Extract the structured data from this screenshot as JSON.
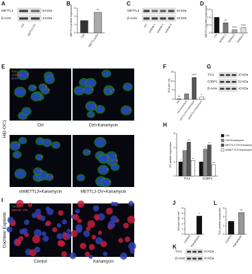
{
  "panel_a": {
    "letter": "A",
    "rows": [
      "METTL3",
      "β-Actin"
    ],
    "sizes": [
      "64 kDa",
      "43 kDa"
    ],
    "lanes": [
      "Ctrl",
      "METTL3 OV"
    ]
  },
  "panel_b": {
    "letter": "B",
    "ylabel": "METTL3 protein expression",
    "categories": [
      "Ctrl",
      "METTL3-OV"
    ],
    "values": [
      1.5,
      2.5
    ],
    "sig": [
      null,
      "**"
    ],
    "ylim": [
      0,
      3
    ],
    "yticks": [
      0,
      1,
      2,
      3
    ],
    "colors": [
      "#333333",
      "#aaaaaa"
    ]
  },
  "panel_c": {
    "letter": "C",
    "rows": [
      "METTL3",
      "β-Actin"
    ],
    "sizes": [
      "64 kDa",
      "43 kDa"
    ],
    "lanes": [
      "Ctrl",
      "ShRNA-1",
      "ShRNA-2",
      "ShRNA-3"
    ]
  },
  "panel_d": {
    "letter": "D",
    "ylabel": "METTL3 protein expression",
    "categories": [
      "Ctrl",
      "ShRNA-1",
      "ShRNA-2",
      "ShRNA-3"
    ],
    "values": [
      1.0,
      0.65,
      0.2,
      0.35
    ],
    "sig": [
      null,
      "**",
      "****",
      "****"
    ],
    "ylim": [
      0,
      1.5
    ],
    "yticks": [
      0,
      0.5,
      {
        "value": 1,
        "label": "1.0"
      },
      1.5
    ],
    "colors": [
      "#111111",
      "#777777",
      "#aaaaaa",
      "#dddddd"
    ]
  },
  "panel_e": {
    "letter": "E",
    "side": "HEI-OC1",
    "channels": [
      "TIA1",
      "G3BP1",
      "DAPI"
    ],
    "images": [
      "Ctrl",
      "Ctrl+Kanamycin",
      "shMETTL3+Kanamycin",
      "METTL3 OV+Kanamycin"
    ]
  },
  "panel_f": {
    "letter": "F",
    "ylabel": "SGs per cell",
    "categories": [
      "Ctrl",
      "Ctrl+Kanamycin",
      "METTL3 OV+Kanamycin",
      "shMETTL3+Kanamycin"
    ],
    "values": [
      0.2,
      3,
      12,
      1.2
    ],
    "sig": [
      "**",
      null,
      "****",
      "*"
    ],
    "ylim": [
      0,
      15
    ],
    "yticks": [
      0,
      5,
      10,
      15
    ],
    "colors": [
      "#111111",
      "#888888",
      "#555555",
      "#ffffff"
    ]
  },
  "panel_g": {
    "letter": "G",
    "rows": [
      "TIA1",
      "G3BP1",
      "β-Actin"
    ],
    "sizes": [
      "43 kDa",
      "52 kDa",
      "43 kDa"
    ]
  },
  "panel_h": {
    "letter": "H",
    "ylabel": "SG protein expression",
    "categories": [
      "TIA1",
      "G3BP1"
    ],
    "ylim": [
      0,
      3
    ],
    "yticks": [
      0,
      1,
      2,
      3
    ],
    "series": [
      {
        "name": "Ctrl",
        "color": "#111111",
        "values": [
          1.0,
          1.0
        ],
        "sig": [
          "*",
          null
        ]
      },
      {
        "name": "Ctrl+Kanamycin",
        "color": "#888888",
        "values": [
          1.8,
          1.9
        ],
        "sig": [
          null,
          "*"
        ]
      },
      {
        "name": "METTL3 OV+Kanamycin",
        "color": "#555555",
        "values": [
          2.4,
          2.2
        ],
        "sig": [
          "***",
          "**"
        ]
      },
      {
        "name": "shMETTL3+Kanamycin",
        "color": "#ffffff",
        "values": [
          1.1,
          0.8
        ],
        "sig": [
          "**",
          "***"
        ]
      }
    ]
  },
  "panel_i": {
    "letter": "I",
    "side": "Cochlear Explants",
    "channels": [
      "TIA1",
      "Myosin VIIa"
    ],
    "images": [
      "Control",
      "Kanamycin"
    ]
  },
  "panel_j": {
    "letter": "J",
    "ylabel": "SGs per hair cell",
    "categories": [
      "Control",
      "Kanamycin"
    ],
    "values": [
      0,
      3.5
    ],
    "sig": [
      null,
      "*"
    ],
    "ylim": [
      0,
      5
    ],
    "yticks": [
      0,
      1,
      2,
      3,
      4,
      5
    ],
    "colors": [
      "#111111",
      "#111111"
    ]
  },
  "panel_k": {
    "letter": "K",
    "rows": [
      "TIA1",
      "β-Actin"
    ],
    "sizes": [
      "43 kDa",
      "43 kDa"
    ]
  },
  "panel_l": {
    "letter": "L",
    "ylabel": "TIA1 protein expression",
    "categories": [
      "Control",
      "Kanamycin"
    ],
    "values": [
      1.5,
      2.5
    ],
    "sig": [
      null,
      "**"
    ],
    "ylim": [
      0,
      3
    ],
    "yticks": [
      0,
      1,
      2,
      3
    ],
    "colors": [
      "#111111",
      "#999999"
    ]
  }
}
